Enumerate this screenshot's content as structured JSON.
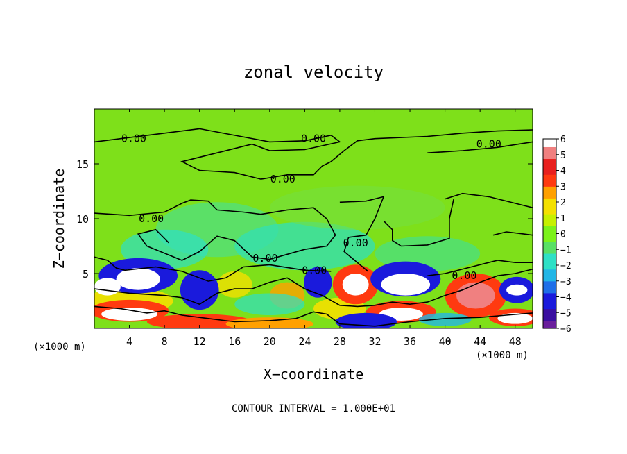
{
  "chart_data": {
    "type": "heatmap",
    "title": "zonal velocity",
    "xlabel": "X−coordinate",
    "ylabel": "Z−coordinate",
    "x_unit_left": "(×1000 m)",
    "x_unit_right": "(×1000 m)",
    "footer": "CONTOUR INTERVAL = 1.000E+01",
    "xlim": [
      0,
      50
    ],
    "ylim": [
      0,
      20
    ],
    "x_ticks": [
      "4",
      "8",
      "12",
      "16",
      "20",
      "24",
      "28",
      "32",
      "36",
      "40",
      "44",
      "48"
    ],
    "y_ticks": [
      "5",
      "10",
      "15"
    ],
    "colorbar": {
      "range": [
        -6,
        6
      ],
      "ticks": [
        "6",
        "5",
        "4",
        "3",
        "2",
        "1",
        "0",
        "−1",
        "−2",
        "−3",
        "−4",
        "−5",
        "−6"
      ],
      "colors": [
        "#6a1f9c",
        "#3a0fa0",
        "#1a1adc",
        "#1f6fe8",
        "#22b6e6",
        "#2ee0c6",
        "#58e065",
        "#7cf21a",
        "#c6f000",
        "#f4e000",
        "#ffa000",
        "#ff3a10",
        "#e8201e",
        "#f08080",
        "#ffffff"
      ]
    },
    "contour_labels": [
      {
        "text": "0.00",
        "x": 4.5,
        "z": 17.3
      },
      {
        "text": "0.00",
        "x": 25,
        "z": 17.3
      },
      {
        "text": "0.00",
        "x": 45,
        "z": 16.8
      },
      {
        "text": "0.00",
        "x": 21.5,
        "z": 13.6
      },
      {
        "text": "0.00",
        "x": 6.5,
        "z": 10.0
      },
      {
        "text": "0.00",
        "x": 29.8,
        "z": 7.8
      },
      {
        "text": "0.00",
        "x": 19.5,
        "z": 6.4
      },
      {
        "text": "0.00",
        "x": 25.1,
        "z": 5.3
      },
      {
        "text": "0.00",
        "x": 42.2,
        "z": 4.8
      }
    ]
  }
}
